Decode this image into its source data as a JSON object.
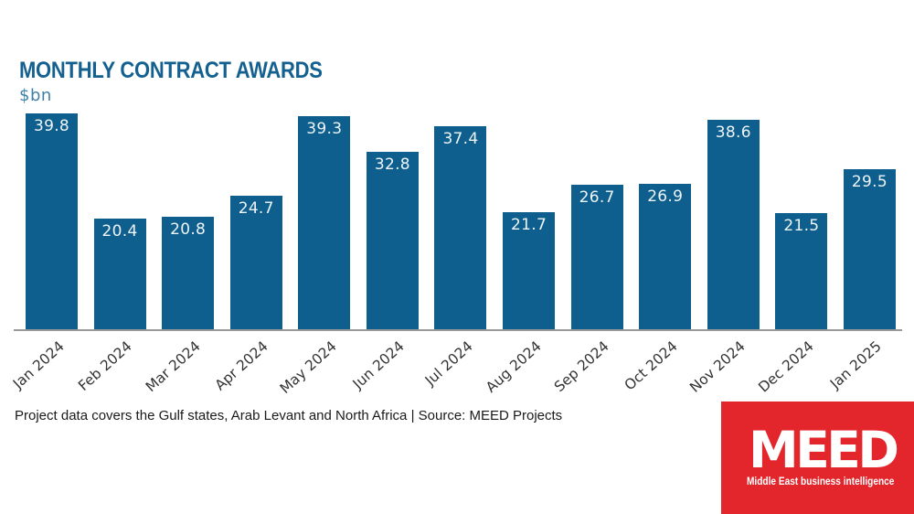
{
  "title": "MONTHLY CONTRACT AWARDS",
  "unit_label": "$bn",
  "footer_note": "Project data covers the Gulf states, Arab Levant and North Africa | Source: MEED Projects",
  "logo": {
    "name": "MEED",
    "tagline": "Middle East business intelligence",
    "bg_color": "#e3262c",
    "text_color": "#ffffff"
  },
  "colors": {
    "bar": "#0e5f8e",
    "title": "#14618f",
    "unit_label": "#3f80a9",
    "axis_line": "#999999",
    "tick_label": "#333333",
    "value_label": "#eef4f8"
  },
  "chart_data": {
    "type": "bar",
    "categories": [
      "Jan 2024",
      "Feb 2024",
      "Mar 2024",
      "Apr 2024",
      "May 2024",
      "Jun 2024",
      "Jul 2024",
      "Aug 2024",
      "Sep 2024",
      "Oct 2024",
      "Nov 2024",
      "Dec 2024",
      "Jan 2025"
    ],
    "values": [
      39.8,
      20.4,
      20.8,
      24.7,
      39.3,
      32.8,
      37.4,
      21.7,
      26.7,
      26.9,
      38.6,
      21.5,
      29.5
    ],
    "title": "MONTHLY CONTRACT AWARDS",
    "xlabel": "",
    "ylabel": "$bn",
    "ylim": [
      0,
      40
    ],
    "grid": false,
    "legend": false,
    "value_label_position": "inside-top"
  }
}
